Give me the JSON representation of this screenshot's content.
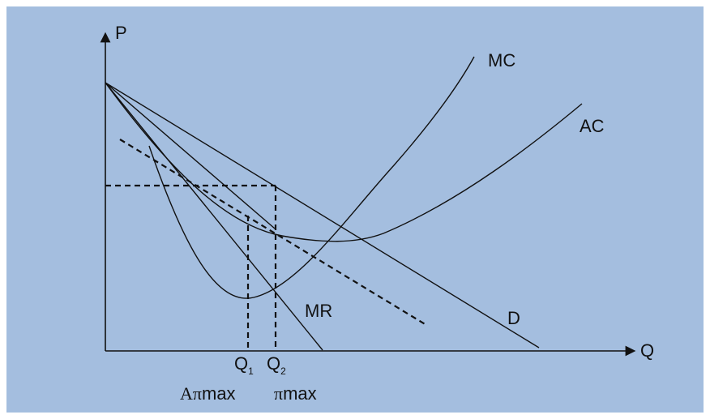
{
  "colors": {
    "background": "#a4bedf",
    "ink": "#111111"
  },
  "axes": {
    "y_label": "P",
    "x_label": "Q"
  },
  "curves": {
    "mc": "MC",
    "ac": "AC",
    "mr": "MR",
    "demand": "D"
  },
  "quantities": {
    "q1": {
      "letter": "Q",
      "sub": "1",
      "caption_symbol": "Aπ",
      "caption_text": "max"
    },
    "q2": {
      "letter": "Q",
      "sub": "2",
      "caption_symbol": "π",
      "caption_text": "max"
    }
  }
}
